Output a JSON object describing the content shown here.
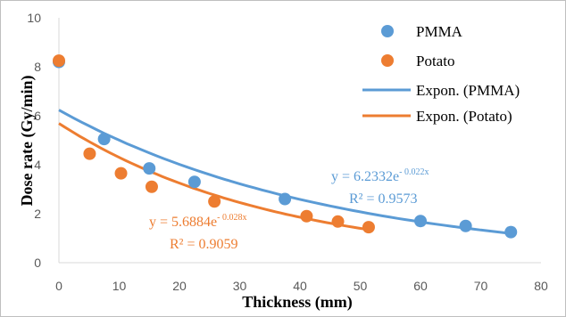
{
  "chart_data": {
    "type": "scatter",
    "xlabel": "Thickness (mm)",
    "ylabel": "Dose rate  (Gy/min)",
    "xlim": [
      0,
      80
    ],
    "ylim": [
      0,
      10
    ],
    "xticks": [
      "0",
      "10",
      "20",
      "30",
      "40",
      "50",
      "60",
      "70",
      "80"
    ],
    "yticks": [
      "0",
      "2",
      "4",
      "6",
      "8",
      "10"
    ],
    "grid": false,
    "legend_position": "top-right",
    "series": [
      {
        "name": "PMMA",
        "color": "#5B9BD5",
        "x": [
          0,
          7.5,
          15,
          22.5,
          37.5,
          60,
          67.5,
          75
        ],
        "y": [
          8.2,
          5.05,
          3.85,
          3.3,
          2.6,
          1.7,
          1.5,
          1.25
        ]
      },
      {
        "name": "Potato",
        "color": "#ED7D31",
        "x": [
          0,
          5.1,
          10.3,
          15.4,
          25.8,
          41.1,
          46.3,
          51.4
        ],
        "y": [
          8.25,
          4.45,
          3.65,
          3.1,
          2.5,
          1.9,
          1.68,
          1.45
        ]
      }
    ],
    "trendlines": [
      {
        "name": "Expon. (PMMA)",
        "color": "#5B9BD5",
        "a": 6.2332,
        "b": -0.022,
        "x_range": [
          0,
          75
        ],
        "equation_main": "y = 6.2332e",
        "equation_exp": "- 0.022x",
        "r2": "R² = 0.9573"
      },
      {
        "name": "Expon. (Potato)",
        "color": "#ED7D31",
        "a": 5.6884,
        "b": -0.028,
        "x_range": [
          0,
          51.4
        ],
        "equation_main": "y = 5.6884e",
        "equation_exp": "- 0.028x",
        "r2": "R² = 0.9059"
      }
    ]
  }
}
